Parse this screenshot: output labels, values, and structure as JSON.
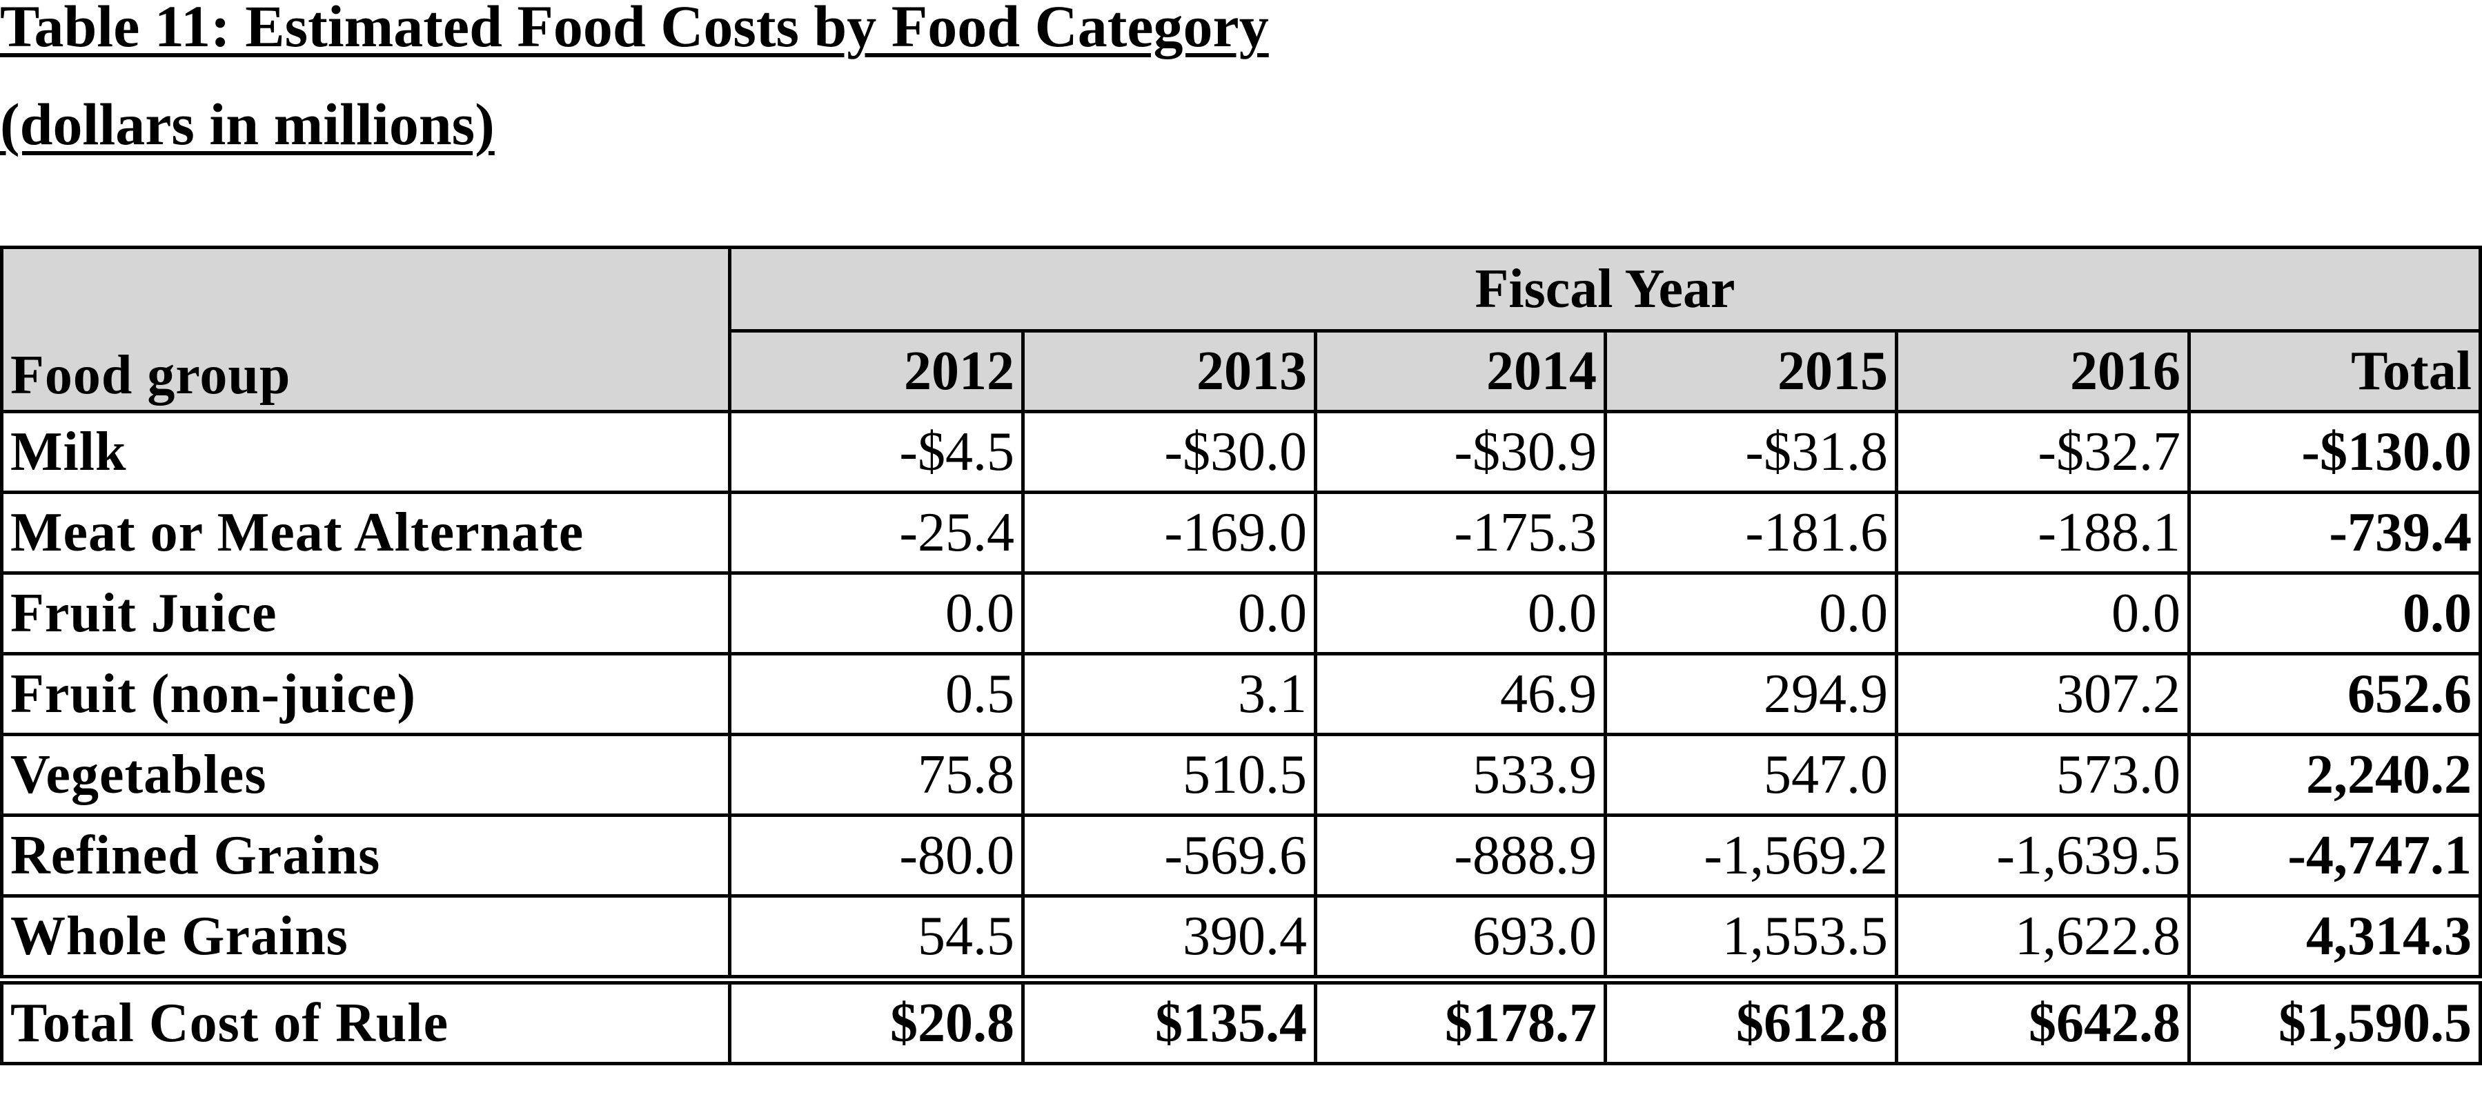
{
  "title": "Table 11: Estimated Food Costs by Food Category",
  "subtitle": "(dollars in millions)",
  "table": {
    "group_header": "Fiscal Year",
    "columns": [
      "Food group",
      "2012",
      "2013",
      "2014",
      "2015",
      "2016",
      "Total"
    ],
    "rows": [
      [
        "Milk",
        "-$4.5",
        "-$30.0",
        "-$30.9",
        "-$31.8",
        "-$32.7",
        "-$130.0"
      ],
      [
        "Meat or Meat Alternate",
        "-25.4",
        "-169.0",
        "-175.3",
        "-181.6",
        "-188.1",
        "-739.4"
      ],
      [
        "Fruit Juice",
        "0.0",
        "0.0",
        "0.0",
        "0.0",
        "0.0",
        "0.0"
      ],
      [
        "Fruit (non-juice)",
        "0.5",
        "3.1",
        "46.9",
        "294.9",
        "307.2",
        "652.6"
      ],
      [
        "Vegetables",
        "75.8",
        "510.5",
        "533.9",
        "547.0",
        "573.0",
        "2,240.2"
      ],
      [
        "Refined Grains",
        "-80.0",
        "-569.6",
        "-888.9",
        "-1,569.2",
        "-1,639.5",
        "-4,747.1"
      ],
      [
        "Whole Grains",
        "54.5",
        "390.4",
        "693.0",
        "1,553.5",
        "1,622.8",
        "4,314.3"
      ]
    ],
    "total_row": [
      "Total Cost of Rule",
      "$20.8",
      "$135.4",
      "$178.7",
      "$612.8",
      "$642.8",
      "$1,590.5"
    ]
  }
}
